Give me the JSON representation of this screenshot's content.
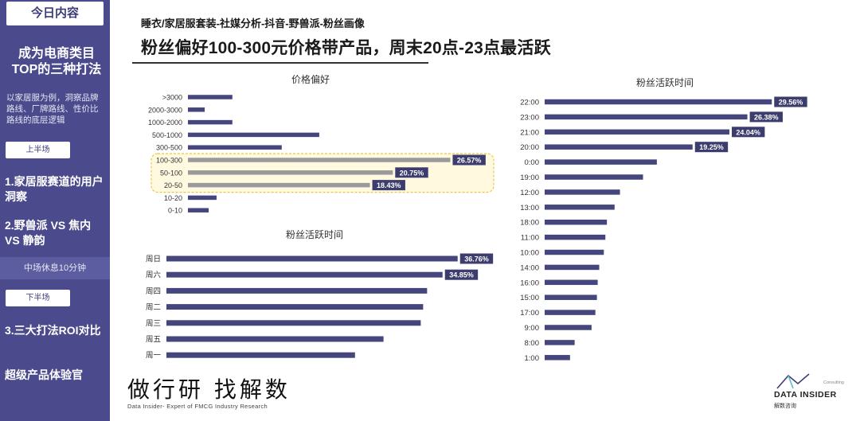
{
  "sidebar": {
    "title": "今日内容",
    "heading_line1": "成为电商类目",
    "heading_line2": "TOP的三种打法",
    "desc": "以家居服为例，洞察品牌路线、厂牌路线、性价比路线的底层逻辑",
    "tag_first": "上半场",
    "item1": "1.家居服赛道的用户洞察",
    "item2": "2.野兽派 VS 焦内 VS 静韵",
    "break": "中场休息10分钟",
    "tag_second": "下半场",
    "item3": "3.三大打法ROI对比",
    "item4": "超级产品体验官"
  },
  "header": {
    "kicker": "睡衣/家居服套装-社媒分析-抖音-野兽派-粉丝画像",
    "headline": "粉丝偏好100-300元价格带产品，周末20点-23点最活跃"
  },
  "colors": {
    "bar": "#46467E",
    "label_bg": "#3C3C6E",
    "highlight_bar": "#9A9A9A",
    "highlight_border": "#E8C84A",
    "highlight_fill": "#FFF9E0"
  },
  "chart_data": [
    {
      "type": "bar",
      "orientation": "horizontal",
      "title": "价格偏好",
      "categories": [
        ">3000",
        "2000-3000",
        "1000-2000",
        "500-1000",
        "300-500",
        "100-300",
        "50-100",
        "20-50",
        "10-20",
        "0-10"
      ],
      "values": [
        4.5,
        1.7,
        4.5,
        13.3,
        9.5,
        26.57,
        20.75,
        18.43,
        2.9,
        2.1
      ],
      "labeled": [
        false,
        false,
        false,
        false,
        false,
        true,
        true,
        true,
        false,
        false
      ],
      "labels": [
        "",
        "",
        "",
        "",
        "",
        "26.57%",
        "20.75%",
        "18.43%",
        "",
        ""
      ],
      "highlighted": [
        "100-300",
        "50-100",
        "20-50"
      ],
      "unit": "%"
    },
    {
      "type": "bar",
      "orientation": "horizontal",
      "title": "粉丝活跃时间",
      "categories": [
        "周日",
        "周六",
        "周四",
        "周二",
        "周三",
        "周五",
        "周一"
      ],
      "values": [
        36.76,
        34.85,
        32.9,
        32.4,
        32.1,
        27.4,
        23.8
      ],
      "labels": [
        "36.76%",
        "34.85%",
        "",
        "",
        "",
        "",
        ""
      ],
      "unit": "%"
    },
    {
      "type": "bar",
      "orientation": "horizontal",
      "title": "粉丝活跃时间",
      "categories": [
        "22:00",
        "23:00",
        "21:00",
        "20:00",
        "0:00",
        "19:00",
        "12:00",
        "13:00",
        "18:00",
        "11:00",
        "10:00",
        "14:00",
        "16:00",
        "15:00",
        "17:00",
        "9:00",
        "8:00",
        "1:00"
      ],
      "values": [
        29.56,
        26.38,
        24.04,
        19.25,
        14.6,
        12.8,
        9.8,
        9.1,
        8.1,
        7.9,
        7.7,
        7.1,
        6.9,
        6.8,
        6.6,
        6.1,
        3.9,
        3.3
      ],
      "labels": [
        "29.56%",
        "26.38%",
        "24.04%",
        "19.25%",
        "",
        "",
        "",
        "",
        "",
        "",
        "",
        "",
        "",
        "",
        "",
        "",
        "",
        ""
      ],
      "unit": "%"
    }
  ],
  "footer": {
    "brand": "做行研 找解数",
    "brand_sub": "Data Insider- Expert of FMCG Industry Research",
    "logo_text": "DATA INSIDER",
    "logo_sub": "解数咨询",
    "logo_consult": "Consulting"
  }
}
